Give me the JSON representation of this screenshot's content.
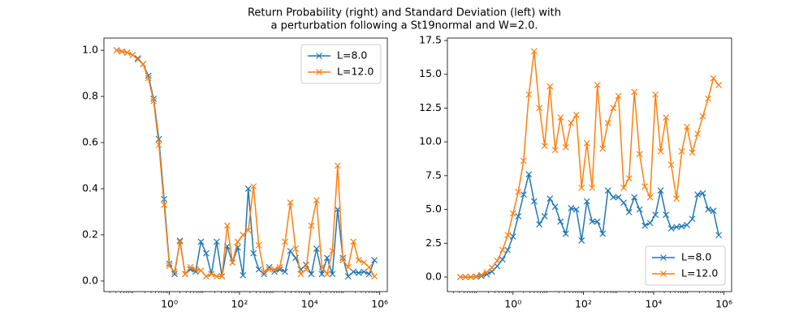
{
  "title": [
    "Return Probability (right) and Standard Deviation (left) with",
    "a perturbation following a St19normal and W=2.0."
  ],
  "chart_data": [
    {
      "type": "line",
      "log_x": true,
      "legend": "upper right",
      "x": [
        0.0316,
        0.0447,
        0.0631,
        0.0891,
        0.126,
        0.178,
        0.251,
        0.355,
        0.501,
        0.708,
        1.0,
        1.41,
        2.0,
        2.82,
        3.98,
        5.62,
        7.94,
        11.2,
        15.8,
        22.4,
        31.6,
        44.7,
        63.1,
        89.1,
        126,
        178,
        251,
        355,
        501,
        708,
        1000,
        1410,
        2000,
        2820,
        3980,
        5620,
        7940,
        11200,
        15800,
        22400,
        31600,
        44700,
        63100,
        89100,
        126000,
        178000,
        251000,
        355000,
        501000,
        708000
      ],
      "series": [
        {
          "name": "L=8.0",
          "color": "#1f77b4",
          "values": [
            1.0,
            0.995,
            0.99,
            0.98,
            0.965,
            0.94,
            0.89,
            0.79,
            0.615,
            0.355,
            0.075,
            0.03,
            0.175,
            0.03,
            0.05,
            0.04,
            0.17,
            0.12,
            0.03,
            0.17,
            0.02,
            0.15,
            0.08,
            0.145,
            0.025,
            0.4,
            0.12,
            0.05,
            0.03,
            0.06,
            0.04,
            0.05,
            0.04,
            0.13,
            0.1,
            0.05,
            0.07,
            0.03,
            0.14,
            0.03,
            0.1,
            0.03,
            0.31,
            0.1,
            0.02,
            0.04,
            0.035,
            0.04,
            0.03,
            0.09
          ]
        },
        {
          "name": "L=12.0",
          "color": "#ff7f0e",
          "values": [
            1.0,
            0.995,
            0.99,
            0.98,
            0.96,
            0.94,
            0.88,
            0.78,
            0.59,
            0.33,
            0.065,
            0.04,
            0.17,
            0.03,
            0.06,
            0.05,
            0.045,
            0.02,
            0.03,
            0.02,
            0.02,
            0.24,
            0.08,
            0.17,
            0.2,
            0.22,
            0.41,
            0.155,
            0.04,
            0.05,
            0.05,
            0.06,
            0.17,
            0.34,
            0.14,
            0.03,
            0.05,
            0.24,
            0.35,
            0.06,
            0.03,
            0.13,
            0.5,
            0.09,
            0.06,
            0.17,
            0.09,
            0.08,
            0.06,
            0.02
          ]
        }
      ],
      "xlim": [
        0.0136,
        1650000
      ],
      "xticks": [
        {
          "value": 1,
          "label": "10⁰"
        },
        {
          "value": 100,
          "label": "10²"
        },
        {
          "value": 10000,
          "label": "10⁴"
        },
        {
          "value": 1000000,
          "label": "10⁶"
        }
      ],
      "ylim": [
        -0.046,
        1.053
      ],
      "yticks": [
        {
          "value": 0,
          "label": "0.0"
        },
        {
          "value": 0.2,
          "label": "0.2"
        },
        {
          "value": 0.4,
          "label": "0.4"
        },
        {
          "value": 0.6,
          "label": "0.6"
        },
        {
          "value": 0.8,
          "label": "0.8"
        },
        {
          "value": 1,
          "label": "1.0"
        }
      ]
    },
    {
      "type": "line",
      "log_x": true,
      "legend": "lower right",
      "x": [
        0.0316,
        0.0447,
        0.0631,
        0.0891,
        0.126,
        0.178,
        0.251,
        0.355,
        0.501,
        0.708,
        1.0,
        1.41,
        2.0,
        2.82,
        3.98,
        5.62,
        7.94,
        11.2,
        15.8,
        22.4,
        31.6,
        44.7,
        63.1,
        89.1,
        126,
        178,
        251,
        355,
        501,
        708,
        1000,
        1410,
        2000,
        2820,
        3980,
        5620,
        7940,
        11200,
        15800,
        22400,
        31600,
        44700,
        63100,
        89100,
        126000,
        178000,
        251000,
        355000,
        501000,
        708000
      ],
      "series": [
        {
          "name": "L=8.0",
          "color": "#1f77b4",
          "values": [
            0,
            0,
            0,
            0.02,
            0.08,
            0.2,
            0.4,
            0.8,
            1.3,
            2.0,
            3.0,
            4.5,
            6.1,
            7.6,
            5.6,
            3.9,
            4.5,
            5.8,
            5.2,
            4.1,
            3.2,
            5.1,
            5.0,
            2.7,
            5.6,
            4.1,
            4.1,
            3.2,
            6.4,
            5.9,
            5.9,
            5.5,
            4.8,
            5.9,
            5.0,
            3.8,
            4.0,
            4.6,
            6.4,
            4.6,
            3.6,
            3.7,
            3.75,
            3.85,
            4.3,
            6.1,
            6.2,
            5.0,
            4.9,
            3.1
          ]
        },
        {
          "name": "L=12.0",
          "color": "#ff7f0e",
          "values": [
            0,
            0,
            0,
            0.05,
            0.15,
            0.35,
            0.7,
            1.2,
            2.0,
            3.1,
            4.7,
            6.3,
            8.6,
            13.5,
            16.7,
            12.5,
            9.7,
            14.1,
            9.4,
            11.8,
            9.6,
            11.4,
            12.0,
            6.6,
            9.9,
            6.6,
            14.2,
            9.5,
            11.4,
            12.5,
            13.4,
            6.6,
            7.3,
            13.7,
            9.1,
            6.7,
            5.9,
            13.5,
            9.3,
            11.8,
            8.3,
            5.8,
            9.3,
            11.1,
            9.2,
            10.6,
            11.9,
            13.2,
            14.7,
            14.2
          ]
        }
      ],
      "xlim": [
        0.0136,
        1650000
      ],
      "xticks": [
        {
          "value": 1,
          "label": "10⁰"
        },
        {
          "value": 100,
          "label": "10²"
        },
        {
          "value": 10000,
          "label": "10⁴"
        },
        {
          "value": 1000000,
          "label": "10⁶"
        }
      ],
      "ylim": [
        -1.08,
        17.68
      ],
      "yticks": [
        {
          "value": 0,
          "label": "0.0"
        },
        {
          "value": 2.5,
          "label": "2.5"
        },
        {
          "value": 5,
          "label": "5.0"
        },
        {
          "value": 7.5,
          "label": "7.5"
        },
        {
          "value": 10,
          "label": "10.0"
        },
        {
          "value": 12.5,
          "label": "12.5"
        },
        {
          "value": 15,
          "label": "15.0"
        },
        {
          "value": 17.5,
          "label": "17.5"
        }
      ]
    }
  ]
}
